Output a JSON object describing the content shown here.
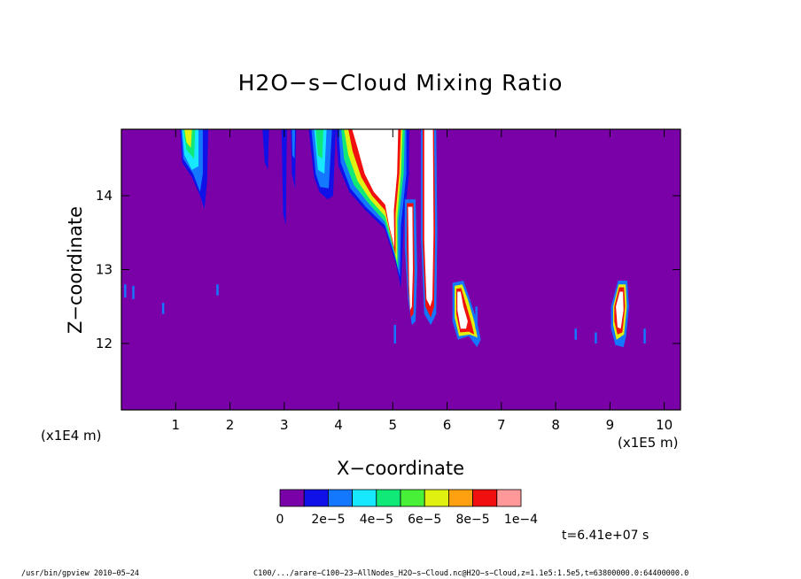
{
  "chart_data": {
    "type": "heatmap",
    "title": "H2O−s−Cloud Mixing Ratio",
    "xlabel": "X−coordinate",
    "ylabel": "Z−coordinate",
    "x_unit": "(x1E5 m)",
    "y_unit": "(x1E4 m)",
    "xlim": [
      0,
      10.3
    ],
    "ylim": [
      11.1,
      14.9
    ],
    "xticks": [
      1,
      2,
      3,
      4,
      5,
      6,
      7,
      8,
      9,
      10
    ],
    "yticks": [
      12,
      13,
      14
    ],
    "background_value": 0,
    "colorbar": {
      "levels": [
        0,
        1e-05,
        2e-05,
        3e-05,
        4e-05,
        5e-05,
        6e-05,
        7e-05,
        8e-05,
        9e-05,
        0.0001
      ],
      "colors": [
        "#7a00a8",
        "#1010e8",
        "#1478ff",
        "#18e8ff",
        "#10e878",
        "#48f038",
        "#e0f010",
        "#ffa010",
        "#f01010",
        "#ff9898"
      ],
      "labels": [
        "0",
        "2e−5",
        "4e−5",
        "6e−5",
        "8e−5",
        "1e−4"
      ]
    },
    "regions": [
      {
        "x": [
          1.1,
          1.6
        ],
        "z": [
          13.8,
          14.9
        ],
        "max_level": "7e-5"
      },
      {
        "x": [
          2.6,
          3.2
        ],
        "z": [
          13.6,
          14.9
        ],
        "max_level": "4e-5"
      },
      {
        "x": [
          3.5,
          3.9
        ],
        "z": [
          13.9,
          14.9
        ],
        "max_level": "6e-5"
      },
      {
        "x": [
          4.1,
          5.3
        ],
        "z": [
          12.7,
          14.9
        ],
        "max_level": ">1e-4"
      },
      {
        "x": [
          5.2,
          5.4
        ],
        "z": [
          12.2,
          13.9
        ],
        "max_level": ">1e-4"
      },
      {
        "x": [
          5.5,
          5.8
        ],
        "z": [
          12.2,
          14.9
        ],
        "max_level": ">1e-4"
      },
      {
        "x": [
          6.1,
          6.6
        ],
        "z": [
          11.95,
          12.85
        ],
        "max_level": ">1e-4"
      },
      {
        "x": [
          9.0,
          9.35
        ],
        "z": [
          11.95,
          12.85
        ],
        "max_level": ">1e-4"
      }
    ],
    "annotation": "t=6.41e+07 s"
  },
  "footer": {
    "left": "/usr/bin/gpview  2010−05−24",
    "right": "C100/.../arare−C100−23−AllNodes_H2O−s−Cloud.nc@H2O−s−Cloud,z=1.1e5:1.5e5,t=63800000.0:64400000.0"
  }
}
